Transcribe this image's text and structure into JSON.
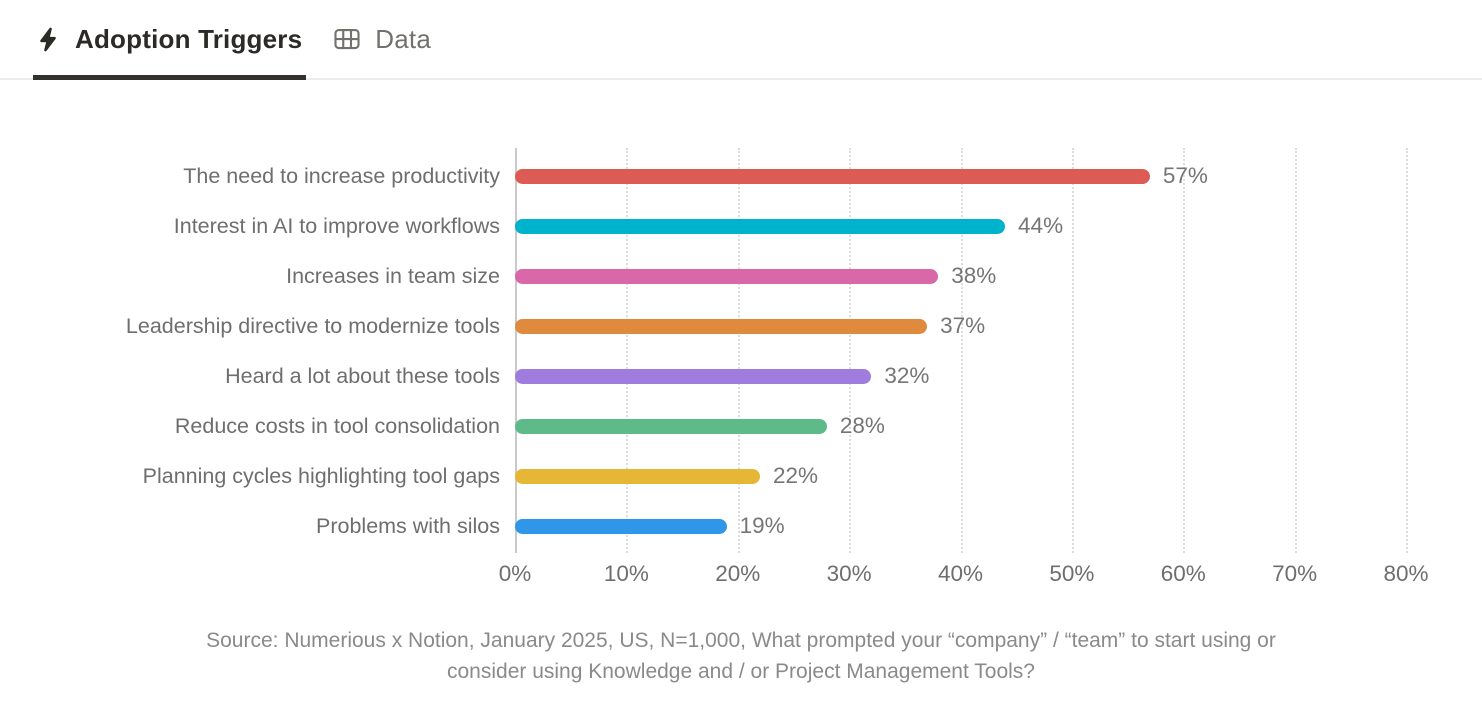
{
  "tabs": [
    {
      "label": "Adoption Triggers",
      "icon": "lightning-bolt-icon",
      "active": true
    },
    {
      "label": "Data",
      "icon": "table-icon",
      "active": false
    }
  ],
  "chart_data": {
    "type": "bar",
    "orientation": "horizontal",
    "title": "",
    "xlabel": "",
    "ylabel": "",
    "categories": [
      "The need to increase productivity",
      "Interest in AI to improve workflows",
      "Increases in team size",
      "Leadership directive to modernize tools",
      "Heard a lot about these tools",
      "Reduce costs in tool consolidation",
      "Planning cycles highlighting tool gaps",
      "Problems with silos"
    ],
    "values": [
      57,
      44,
      38,
      37,
      32,
      28,
      22,
      19
    ],
    "value_labels": [
      "57%",
      "44%",
      "38%",
      "37%",
      "32%",
      "28%",
      "22%",
      "19%"
    ],
    "bar_colors": [
      "#dc5b55",
      "#00b3cc",
      "#d968a8",
      "#e08a3f",
      "#9f7cdd",
      "#5fba8a",
      "#e6b637",
      "#3096e8"
    ],
    "x_ticks": [
      "0%",
      "10%",
      "20%",
      "30%",
      "40%",
      "50%",
      "60%",
      "70%",
      "80%"
    ],
    "xlim": [
      0,
      80
    ],
    "grid": "dotted-vertical",
    "legend": "none"
  },
  "source": {
    "line1": "Source: Numerious x Notion, January 2025, US, N=1,000, What prompted your “company” / “team” to start using or",
    "line2": "consider using Knowledge and / or Project Management Tools?"
  },
  "ui_colors": {
    "active_tab_text": "#2b2a26",
    "inactive_tab_text": "#73716c",
    "tab_underline": "#33312c",
    "tabbar_border": "#ececec",
    "gridline": "#dcdcdc",
    "axis_line": "#c9c9c9",
    "label_gray": "#6e6e6e",
    "value_gray": "#757575",
    "source_gray": "#8a8a8a"
  }
}
